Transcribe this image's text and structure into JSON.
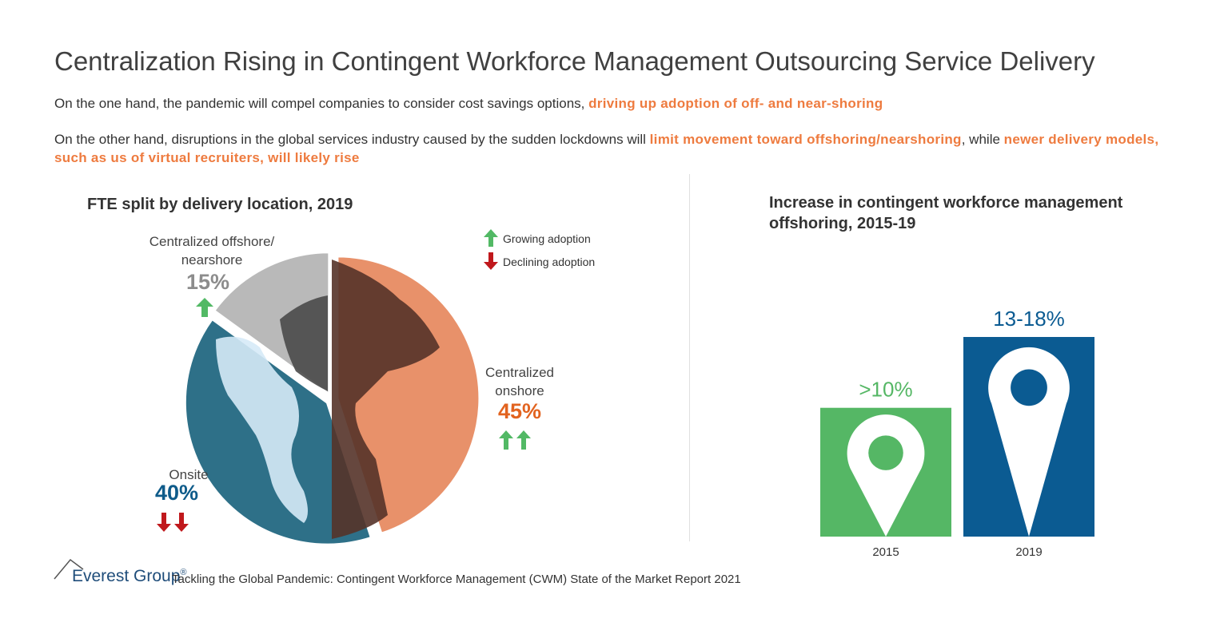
{
  "header": {
    "title": "Centralization Rising in Contingent Workforce Management Outsourcing Service Delivery",
    "para1_plain": "On the one hand, the pandemic will compel companies to consider cost savings options, ",
    "para1_highlight": "driving up adoption of off- and near-shoring",
    "para2_plain1": "On the other hand, disruptions in the global services industry caused by the sudden lockdowns will ",
    "para2_highlight1": "limit movement toward offshoring/nearshoring",
    "para2_plain2": ", while ",
    "para2_highlight2": "newer delivery models, such as us of virtual recruiters, will likely rise"
  },
  "legend": {
    "growing": "Growing adoption",
    "declining": "Declining adoption"
  },
  "colors": {
    "highlight": "#ee7b3f",
    "growing_arrow": "#52b965",
    "declining_arrow": "#c0181c",
    "onsite_value": "#0e5b8a",
    "onshore_value": "#e2631f",
    "offshore_value": "#8c8c8c",
    "bar_2015": "#55b765",
    "bar_2019": "#0b5b92"
  },
  "chart_data": [
    {
      "type": "pie",
      "title": "FTE split by delivery location, 2019",
      "slices": [
        {
          "label": "Centralized onshore",
          "value": 45,
          "display": "45%",
          "trend": "up-up"
        },
        {
          "label": "Onsite",
          "value": 40,
          "display": "40%",
          "trend": "down-down"
        },
        {
          "label": "Centralized offshore/ nearshore",
          "label_line1": "Centralized offshore/",
          "label_line2": "nearshore",
          "value": 15,
          "display": "15%",
          "trend": "up"
        }
      ]
    },
    {
      "type": "bar",
      "title": "Increase in contingent workforce management offshoring, 2015-19",
      "categories": [
        "2015",
        "2019"
      ],
      "values": [
        10,
        15.5
      ],
      "value_labels": [
        ">10%",
        "13-18%"
      ]
    }
  ],
  "footer": {
    "logo": "Everest Group",
    "logo_mark": "®",
    "source": "Tackling the Global Pandemic: Contingent Workforce Management (CWM) State of the Market Report 2021"
  }
}
